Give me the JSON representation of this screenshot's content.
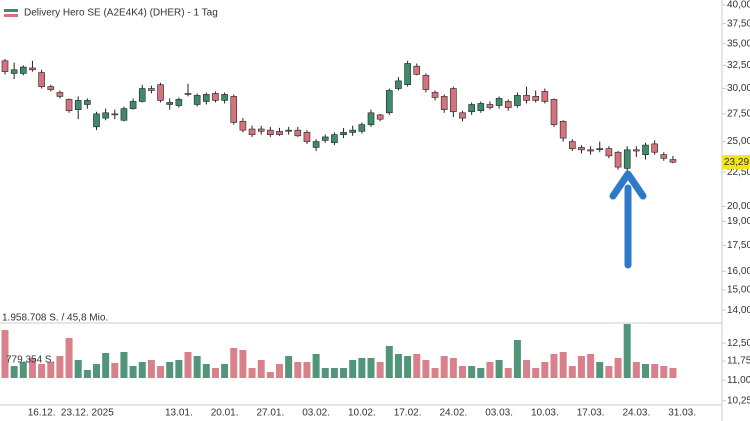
{
  "chart_data": {
    "type": "candlestick",
    "title": "Delivery Hero SE (A2E4K4) (DHER) - 1 Tag",
    "yscale": "log",
    "ylim": [
      10,
      40.4
    ],
    "yticks": [
      {
        "value": 40,
        "label": "40,00"
      },
      {
        "value": 37.5,
        "label": "37,50"
      },
      {
        "value": 35,
        "label": "35,00"
      },
      {
        "value": 32.5,
        "label": "32,50"
      },
      {
        "value": 30,
        "label": "30,00"
      },
      {
        "value": 27.5,
        "label": "27,50"
      },
      {
        "value": 25,
        "label": "25,00"
      },
      {
        "value": 22.5,
        "label": "22,50"
      },
      {
        "value": 20,
        "label": "20,00"
      },
      {
        "value": 19,
        "label": "19,00"
      },
      {
        "value": 17.5,
        "label": "17,50"
      },
      {
        "value": 16,
        "label": "16,00"
      },
      {
        "value": 15,
        "label": "15,00"
      },
      {
        "value": 14,
        "label": "14,00"
      },
      {
        "value": 12.5,
        "label": "12,50"
      },
      {
        "value": 11.75,
        "label": "11,75"
      },
      {
        "value": 11,
        "label": "11,00"
      },
      {
        "value": 10.25,
        "label": "10,25"
      }
    ],
    "categories": [
      null,
      null,
      null,
      null,
      "16.12.",
      null,
      null,
      null,
      null,
      "23.12. 2025",
      null,
      null,
      null,
      null,
      null,
      null,
      null,
      null,
      null,
      "13.01.",
      null,
      null,
      null,
      null,
      "20.01.",
      null,
      null,
      null,
      null,
      "27.01.",
      null,
      null,
      null,
      null,
      "03.02.",
      null,
      null,
      null,
      null,
      "10.02.",
      null,
      null,
      null,
      null,
      "17.02.",
      null,
      null,
      null,
      null,
      "24.02.",
      null,
      null,
      null,
      null,
      "03.03.",
      null,
      null,
      null,
      null,
      "10.03.",
      null,
      null,
      null,
      null,
      "17.03.",
      null,
      null,
      null,
      null,
      "24.03.",
      null,
      null,
      null,
      null,
      "31.03."
    ],
    "open": [
      33.0,
      31.6,
      31.6,
      32.2,
      31.7,
      30.2,
      29.6,
      28.9,
      27.9,
      28.4,
      26.3,
      27.1,
      27.5,
      26.9,
      28.0,
      28.7,
      30.0,
      30.4,
      28.4,
      28.3,
      29.5,
      28.4,
      28.7,
      29.5,
      28.8,
      29.2,
      26.8,
      26.1,
      26.1,
      26.0,
      25.9,
      25.9,
      26.0,
      25.8,
      24.5,
      25.1,
      24.9,
      25.6,
      25.8,
      25.9,
      26.5,
      27.4,
      27.6,
      30.0,
      30.4,
      32.4,
      31.4,
      29.6,
      29.2,
      30.0,
      27.6,
      27.7,
      27.8,
      28.4,
      28.3,
      28.7,
      28.3,
      29.3,
      29.2,
      29.7,
      28.9,
      26.8,
      25.0,
      24.5,
      24.3,
      24.4,
      24.4,
      24.1,
      22.8,
      24.3,
      23.9,
      24.8,
      23.9,
      23.5,
      null
    ],
    "high": [
      33.2,
      32.8,
      32.5,
      33.0,
      32.0,
      30.4,
      29.8,
      29.0,
      29.2,
      29.0,
      27.7,
      28.0,
      27.9,
      28.2,
      29.0,
      30.4,
      30.3,
      30.6,
      29.0,
      29.1,
      30.5,
      29.5,
      29.6,
      29.7,
      29.6,
      29.4,
      27.1,
      26.4,
      26.4,
      26.3,
      26.2,
      26.3,
      26.3,
      26.0,
      25.2,
      25.6,
      25.8,
      26.2,
      26.4,
      26.7,
      27.9,
      27.5,
      30.0,
      31.2,
      33.0,
      32.7,
      31.6,
      29.8,
      29.4,
      30.2,
      27.8,
      28.6,
      28.7,
      28.7,
      29.2,
      28.9,
      29.6,
      30.2,
      29.8,
      30.0,
      29.0,
      26.9,
      25.2,
      24.7,
      24.6,
      25.0,
      24.6,
      24.2,
      24.6,
      24.6,
      24.9,
      25.1,
      24.1,
      23.8,
      null
    ],
    "low": [
      31.5,
      31.0,
      31.4,
      31.8,
      30.0,
      29.7,
      29.0,
      27.6,
      27.0,
      28.0,
      26.0,
      26.9,
      27.0,
      26.8,
      27.9,
      28.6,
      29.5,
      28.6,
      27.9,
      28.1,
      29.2,
      28.2,
      28.4,
      28.6,
      28.5,
      26.5,
      25.8,
      25.4,
      25.6,
      25.4,
      25.5,
      25.6,
      25.4,
      24.8,
      24.2,
      24.9,
      24.7,
      25.3,
      25.5,
      25.7,
      26.3,
      26.8,
      27.4,
      29.8,
      30.2,
      31.4,
      29.6,
      28.8,
      27.6,
      27.2,
      26.8,
      27.4,
      27.6,
      27.9,
      28.0,
      27.8,
      28.1,
      28.5,
      28.6,
      28.5,
      26.3,
      25.0,
      24.2,
      24.0,
      23.9,
      24.1,
      23.6,
      22.7,
      22.5,
      23.7,
      23.5,
      23.9,
      23.4,
      23.2,
      null
    ],
    "close": [
      31.8,
      32.0,
      32.3,
      32.0,
      30.2,
      29.9,
      29.2,
      27.8,
      28.8,
      28.8,
      27.5,
      27.6,
      27.4,
      28.0,
      28.7,
      30.0,
      29.8,
      28.8,
      28.6,
      28.9,
      29.4,
      29.3,
      29.4,
      28.8,
      29.4,
      26.7,
      26.0,
      25.6,
      25.9,
      25.6,
      25.6,
      26.0,
      25.5,
      25.0,
      25.0,
      25.4,
      25.6,
      25.8,
      26.0,
      26.5,
      27.6,
      27.0,
      29.8,
      30.8,
      32.7,
      31.5,
      29.9,
      29.1,
      27.9,
      27.7,
      27.1,
      28.4,
      28.5,
      28.1,
      29.0,
      28.1,
      29.3,
      28.8,
      28.8,
      28.7,
      26.5,
      25.3,
      24.4,
      24.3,
      24.2,
      24.4,
      23.8,
      22.9,
      24.3,
      24.2,
      24.7,
      24.1,
      23.6,
      23.29,
      null
    ],
    "volume": [
      1741100,
      435300,
      580400,
      725400,
      507800,
      580400,
      798000,
      1450900,
      652900,
      290200,
      507800,
      906800,
      544100,
      943100,
      435300,
      580400,
      652900,
      435300,
      580400,
      652900,
      943100,
      798000,
      507800,
      362700,
      507800,
      1088200,
      1015600,
      362700,
      652900,
      217600,
      507800,
      798000,
      580400,
      580400,
      870500,
      362700,
      362700,
      362700,
      652900,
      725400,
      725400,
      580400,
      1160700,
      870500,
      798000,
      870500,
      652900,
      362700,
      798000,
      725400,
      435300,
      435300,
      362700,
      580400,
      652900,
      362700,
      1378300,
      652900,
      362700,
      580400,
      870500,
      943100,
      435300,
      798000,
      870500,
      580400,
      435300,
      725400,
      1958708,
      580400,
      507800,
      507800,
      435300,
      362700,
      null
    ],
    "volume_lim": [
      0,
      1958708
    ],
    "volume_label": "1.958.708 S. / 45,8 Mio.",
    "volume_ref_label": "779.354 S.",
    "last_price": {
      "value": 23.29,
      "label": "23,29"
    },
    "up_color": "#3e8a6c",
    "down_color": "#d5737d",
    "last_color": "#f3e41c"
  }
}
